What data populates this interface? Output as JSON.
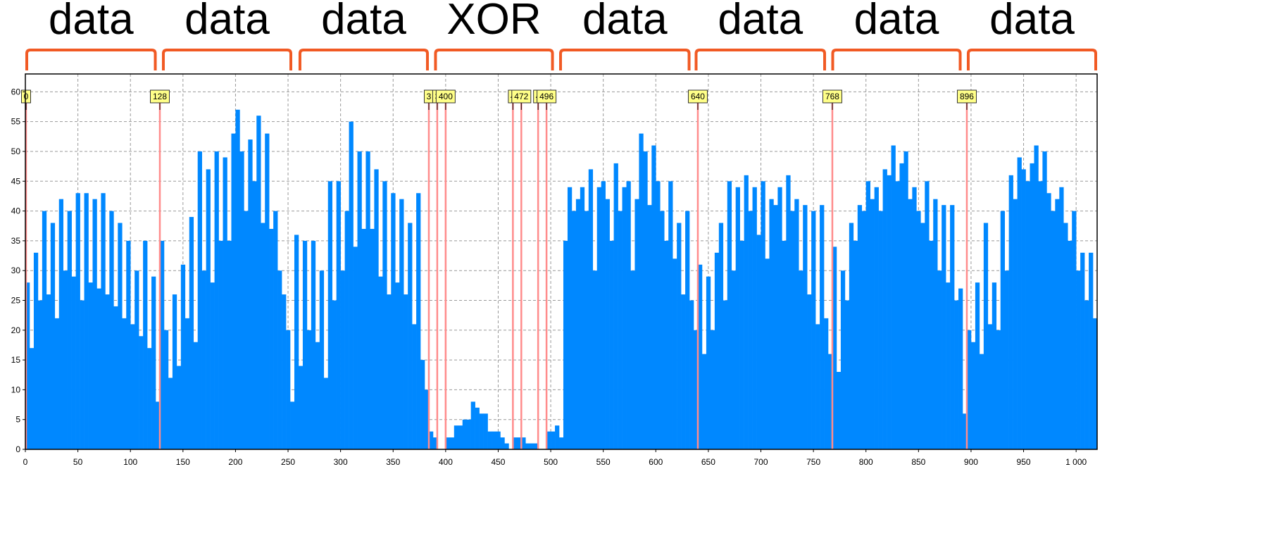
{
  "chart_data": {
    "type": "bar",
    "title": "",
    "xlabel": "",
    "ylabel": "",
    "xlim": [
      0,
      1020
    ],
    "ylim": [
      0,
      63
    ],
    "grid": true,
    "bin_width": 4,
    "x_ticks": [
      0,
      50,
      100,
      150,
      200,
      250,
      300,
      350,
      400,
      450,
      500,
      550,
      600,
      650,
      700,
      750,
      800,
      850,
      900,
      950,
      1000
    ],
    "x_tick_labels": [
      "0",
      "50",
      "100",
      "150",
      "200",
      "250",
      "300",
      "350",
      "400",
      "450",
      "500",
      "550",
      "600",
      "650",
      "700",
      "750",
      "800",
      "850",
      "900",
      "950",
      "1 000"
    ],
    "y_ticks": [
      0,
      5,
      10,
      15,
      20,
      25,
      30,
      35,
      40,
      45,
      50,
      55,
      60
    ],
    "y_tick_labels": [
      "0",
      "5",
      "10",
      "15",
      "20",
      "25",
      "30",
      "35",
      "40",
      "45",
      "50",
      "55",
      "60"
    ],
    "bar_color": "#0088ff",
    "marker_color": "#ff8c8c",
    "values": [
      28,
      17,
      33,
      25,
      40,
      26,
      38,
      22,
      42,
      30,
      40,
      29,
      43,
      25,
      43,
      28,
      42,
      27,
      43,
      26,
      40,
      24,
      38,
      22,
      35,
      21,
      30,
      19,
      35,
      17,
      29,
      8,
      35,
      20,
      12,
      26,
      14,
      31,
      22,
      39,
      18,
      50,
      30,
      47,
      28,
      50,
      35,
      49,
      35,
      53,
      57,
      50,
      40,
      52,
      45,
      56,
      38,
      53,
      37,
      40,
      30,
      26,
      20,
      8,
      36,
      14,
      35,
      20,
      35,
      18,
      30,
      12,
      45,
      25,
      45,
      30,
      40,
      55,
      34,
      50,
      37,
      50,
      37,
      47,
      29,
      45,
      26,
      43,
      28,
      42,
      26,
      38,
      21,
      43,
      15,
      10,
      3,
      2,
      0,
      0,
      2,
      2,
      4,
      4,
      5,
      5,
      8,
      7,
      6,
      6,
      3,
      3,
      3,
      2,
      1,
      0,
      2,
      2,
      2,
      1,
      1,
      1,
      0,
      0,
      3,
      3,
      4,
      2,
      35,
      44,
      40,
      42,
      44,
      40,
      47,
      30,
      44,
      45,
      42,
      35,
      48,
      40,
      44,
      45,
      30,
      42,
      53,
      50,
      41,
      51,
      45,
      40,
      35,
      45,
      32,
      38,
      26,
      40,
      25,
      20,
      31,
      16,
      29,
      20,
      33,
      38,
      25,
      45,
      30,
      44,
      35,
      46,
      40,
      44,
      36,
      45,
      32,
      42,
      41,
      44,
      35,
      46,
      40,
      42,
      30,
      41,
      26,
      40,
      21,
      41,
      22,
      16,
      34,
      13,
      30,
      25,
      38,
      35,
      41,
      40,
      45,
      42,
      44,
      40,
      47,
      46,
      51,
      45,
      48,
      50,
      42,
      44,
      40,
      38,
      45,
      35,
      42,
      30,
      41,
      28,
      41,
      25,
      27,
      6,
      20,
      18,
      28,
      16,
      38,
      21,
      28,
      20,
      40,
      30,
      46,
      42,
      49,
      47,
      45,
      48,
      51,
      45,
      50,
      43,
      40,
      42,
      44,
      38,
      35,
      40,
      30,
      33,
      25,
      33,
      22,
      13
    ],
    "markers": [
      {
        "x": 0,
        "label": "0"
      },
      {
        "x": 128,
        "label": "128"
      },
      {
        "x": 384,
        "label": "3"
      },
      {
        "x": 392,
        "label": "3"
      },
      {
        "x": 400,
        "label": "400"
      },
      {
        "x": 464,
        "label": "4"
      },
      {
        "x": 472,
        "label": "472"
      },
      {
        "x": 488,
        "label": "4"
      },
      {
        "x": 496,
        "label": "496"
      },
      {
        "x": 640,
        "label": "640"
      },
      {
        "x": 768,
        "label": "768"
      },
      {
        "x": 896,
        "label": "896"
      }
    ],
    "segments": [
      {
        "label": "data",
        "from": 0,
        "to": 125
      },
      {
        "label": "data",
        "from": 130,
        "to": 254
      },
      {
        "label": "data",
        "from": 260,
        "to": 384
      },
      {
        "label": "XOR",
        "from": 389,
        "to": 503
      },
      {
        "label": "data",
        "from": 508,
        "to": 633
      },
      {
        "label": "data",
        "from": 637,
        "to": 762
      },
      {
        "label": "data",
        "from": 767,
        "to": 891
      },
      {
        "label": "data",
        "from": 896,
        "to": 1020
      }
    ],
    "bracket_color": "#f15a24"
  }
}
